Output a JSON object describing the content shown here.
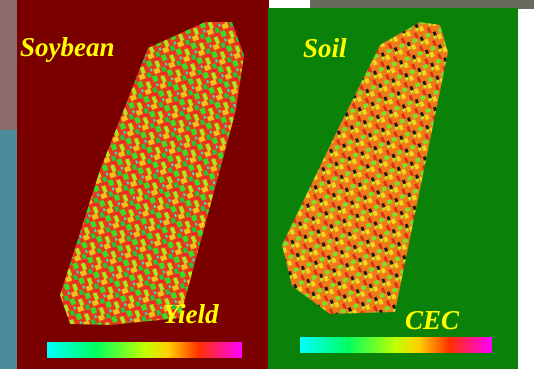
{
  "panels": [
    {
      "crop": "Soybean",
      "measure": "Yield"
    },
    {
      "crop": "Soil",
      "measure": "CEC"
    }
  ]
}
